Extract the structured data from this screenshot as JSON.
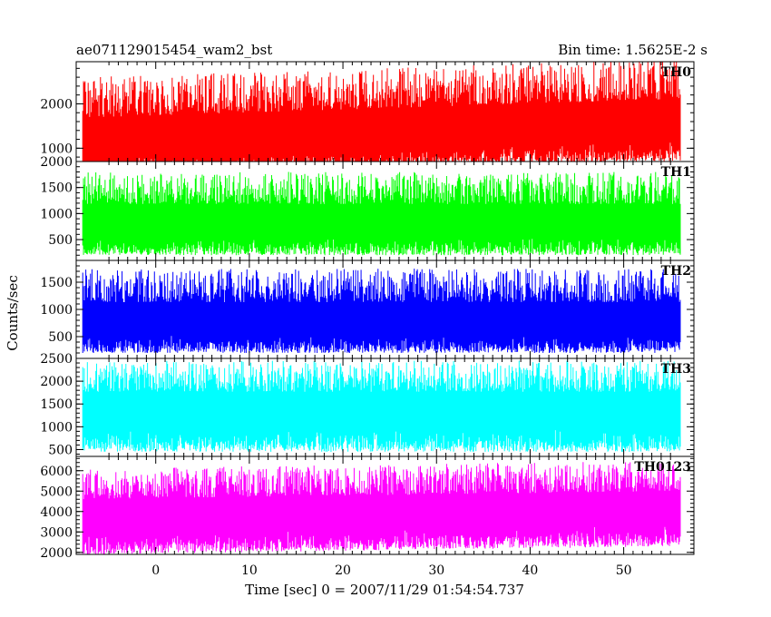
{
  "chart_data": {
    "type": "line",
    "title": "ae071129015454_wam2_bst",
    "subtitle": "Bin time: 1.5625E-2 s",
    "xlabel": "Time [sec] 0 = 2007/11/29 01:54:54.737",
    "ylabel": "Counts/sec",
    "xlim": [
      -8.5,
      57.5
    ],
    "data_x_range": [
      -7.8,
      56.1
    ],
    "x_ticks": [
      0,
      10,
      20,
      30,
      40,
      50
    ],
    "grid": false,
    "panels": [
      {
        "name": "TH0",
        "color": "#ff0000",
        "ylim": [
          700,
          2950
        ],
        "y_ticks": [
          1000,
          2000
        ],
        "top_tick_label": "",
        "mean_start": 1200,
        "mean_end": 1620,
        "spread_low": 900,
        "spread_high": 1400
      },
      {
        "name": "TH1",
        "color": "#00ff00",
        "ylim": [
          100,
          2000
        ],
        "y_ticks": [
          500,
          1000,
          1500
        ],
        "top_tick_label": "2000",
        "mean_start": 850,
        "mean_end": 850,
        "spread_low": 650,
        "spread_high": 950
      },
      {
        "name": "TH2",
        "color": "#0000ff",
        "ylim": [
          100,
          1900
        ],
        "y_ticks": [
          500,
          1000,
          1500
        ],
        "top_tick_label": "",
        "mean_start": 800,
        "mean_end": 800,
        "spread_low": 600,
        "spread_high": 950
      },
      {
        "name": "TH3",
        "color": "#00ffff",
        "ylim": [
          350,
          2500
        ],
        "y_ticks": [
          500,
          1000,
          1500,
          2000
        ],
        "top_tick_label": "2500",
        "mean_start": 1400,
        "mean_end": 1400,
        "spread_low": 950,
        "spread_high": 1050
      },
      {
        "name": "TH0123",
        "color": "#ff00ff",
        "ylim": [
          1900,
          6700
        ],
        "y_ticks": [
          2000,
          3000,
          4000,
          5000,
          6000
        ],
        "top_tick_label": "",
        "mean_start": 3800,
        "mean_end": 4200,
        "spread_low": 1900,
        "spread_high": 2300
      }
    ]
  }
}
